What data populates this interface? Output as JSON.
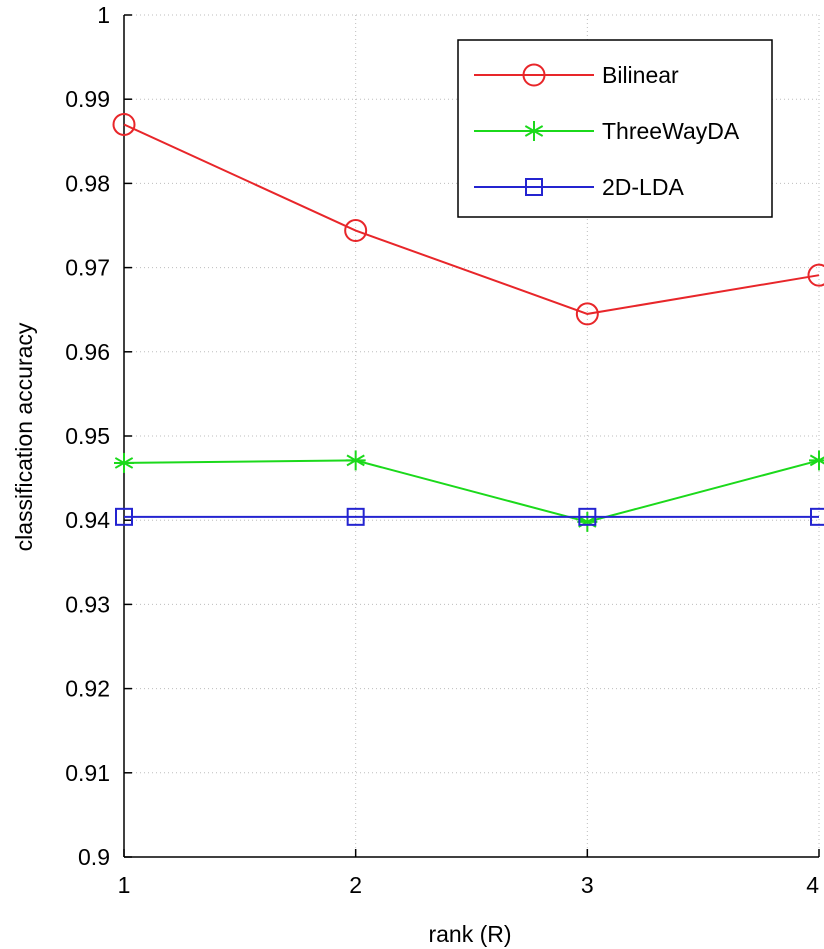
{
  "chart_data": {
    "type": "line",
    "title": "",
    "xlabel": "rank (R)",
    "ylabel": "classification accuracy",
    "x": [
      1,
      2,
      3,
      4
    ],
    "xlim": [
      1,
      4
    ],
    "ylim": [
      0.9,
      1.0
    ],
    "x_ticks": [
      1,
      2,
      3,
      4
    ],
    "x_tick_labels": [
      "1",
      "2",
      "3",
      "4"
    ],
    "y_ticks": [
      0.9,
      0.91,
      0.92,
      0.93,
      0.94,
      0.95,
      0.96,
      0.97,
      0.98,
      0.99,
      1.0
    ],
    "y_tick_labels": [
      "0.9",
      "0.91",
      "0.92",
      "0.93",
      "0.94",
      "0.95",
      "0.96",
      "0.97",
      "0.98",
      "0.99",
      "1"
    ],
    "grid": true,
    "legend_position": "top-right",
    "series": [
      {
        "name": "Bilinear",
        "color": "#e8262a",
        "marker": "circle",
        "values": [
          0.987,
          0.9744,
          0.9645,
          0.9691
        ]
      },
      {
        "name": "ThreeWayDA",
        "color": "#1bd91b",
        "marker": "asterisk",
        "values": [
          0.9468,
          0.9471,
          0.9398,
          0.9471
        ]
      },
      {
        "name": "2D-LDA",
        "color": "#2424d0",
        "marker": "square",
        "values": [
          0.9404,
          0.9404,
          0.9404,
          0.9404
        ]
      }
    ]
  }
}
